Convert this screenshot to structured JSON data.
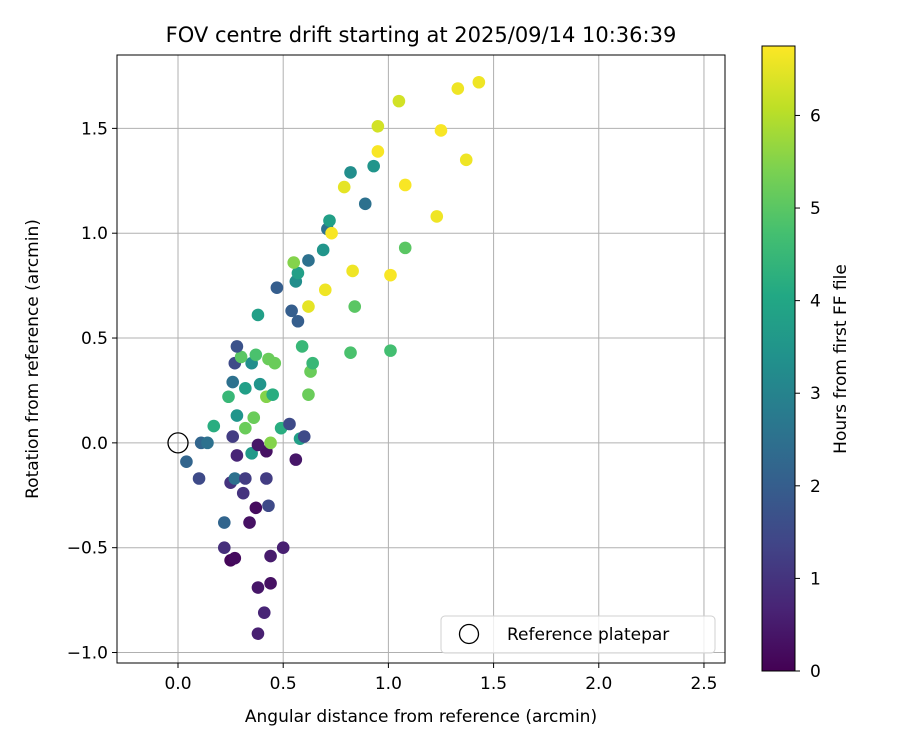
{
  "chart_data": {
    "type": "scatter",
    "title": "FOV centre drift starting at 2025/09/14 10:36:39",
    "xlabel": "Angular distance from reference (arcmin)",
    "ylabel": "Rotation from reference (arcmin)",
    "xlim": [
      -0.29,
      2.6
    ],
    "ylim": [
      -1.05,
      1.85
    ],
    "xticks": [
      0.0,
      0.5,
      1.0,
      1.5,
      2.0,
      2.5
    ],
    "xtick_labels": [
      "0.0",
      "0.5",
      "1.0",
      "1.5",
      "2.0",
      "2.5"
    ],
    "yticks": [
      -1.0,
      -0.5,
      0.0,
      0.5,
      1.0,
      1.5
    ],
    "ytick_labels": [
      "−1.0",
      "−0.5",
      "0.0",
      "0.5",
      "1.0",
      "1.5"
    ],
    "grid": true,
    "legend": {
      "location": "lower-right",
      "entries": [
        {
          "label": "Reference platepar",
          "marker": "open-circle"
        }
      ]
    },
    "colorbar": {
      "label": "Hours from first FF file",
      "colormap": "viridis",
      "range": [
        0,
        6.75
      ],
      "ticks": [
        0,
        1,
        2,
        3,
        4,
        5,
        6
      ],
      "tick_labels": [
        "0",
        "1",
        "2",
        "3",
        "4",
        "5",
        "6"
      ]
    },
    "reference_point": {
      "x": 0.0,
      "y": 0.0
    },
    "points": [
      {
        "x": 0.38,
        "y": -0.91,
        "h": 0.6
      },
      {
        "x": 0.41,
        "y": -0.81,
        "h": 0.7
      },
      {
        "x": 0.38,
        "y": -0.69,
        "h": 0.4
      },
      {
        "x": 0.44,
        "y": -0.67,
        "h": 0.3
      },
      {
        "x": 0.25,
        "y": -0.56,
        "h": 0.1
      },
      {
        "x": 0.27,
        "y": -0.55,
        "h": 0.2
      },
      {
        "x": 0.44,
        "y": -0.54,
        "h": 0.5
      },
      {
        "x": 0.22,
        "y": -0.5,
        "h": 0.9
      },
      {
        "x": 0.5,
        "y": -0.5,
        "h": 0.6
      },
      {
        "x": 0.34,
        "y": -0.38,
        "h": 0.3
      },
      {
        "x": 0.22,
        "y": -0.38,
        "h": 2.2
      },
      {
        "x": 0.37,
        "y": -0.31,
        "h": 0.2
      },
      {
        "x": 0.43,
        "y": -0.3,
        "h": 1.5
      },
      {
        "x": 0.31,
        "y": -0.24,
        "h": 1.0
      },
      {
        "x": 0.25,
        "y": -0.19,
        "h": 1.0
      },
      {
        "x": 0.1,
        "y": -0.17,
        "h": 1.5
      },
      {
        "x": 0.27,
        "y": -0.17,
        "h": 2.5
      },
      {
        "x": 0.32,
        "y": -0.17,
        "h": 1.2
      },
      {
        "x": 0.42,
        "y": -0.17,
        "h": 1.2
      },
      {
        "x": 0.04,
        "y": -0.09,
        "h": 2.2
      },
      {
        "x": 0.56,
        "y": -0.08,
        "h": 0.4
      },
      {
        "x": 0.28,
        "y": -0.06,
        "h": 0.7
      },
      {
        "x": 0.35,
        "y": -0.05,
        "h": 3.6
      },
      {
        "x": 0.42,
        "y": -0.04,
        "h": 0.3
      },
      {
        "x": 0.38,
        "y": -0.01,
        "h": 0.4
      },
      {
        "x": 0.11,
        "y": 0.0,
        "h": 2.2
      },
      {
        "x": 0.14,
        "y": 0.0,
        "h": 2.5
      },
      {
        "x": 0.44,
        "y": 0.0,
        "h": 5.5
      },
      {
        "x": 0.58,
        "y": 0.02,
        "h": 3.8
      },
      {
        "x": 0.26,
        "y": 0.03,
        "h": 1.2
      },
      {
        "x": 0.6,
        "y": 0.03,
        "h": 1.5
      },
      {
        "x": 0.32,
        "y": 0.07,
        "h": 5.2
      },
      {
        "x": 0.49,
        "y": 0.07,
        "h": 4.2
      },
      {
        "x": 0.17,
        "y": 0.08,
        "h": 4.2
      },
      {
        "x": 0.53,
        "y": 0.09,
        "h": 1.5
      },
      {
        "x": 0.36,
        "y": 0.12,
        "h": 5.2
      },
      {
        "x": 0.28,
        "y": 0.13,
        "h": 3.5
      },
      {
        "x": 0.42,
        "y": 0.22,
        "h": 5.5
      },
      {
        "x": 0.62,
        "y": 0.23,
        "h": 5.2
      },
      {
        "x": 0.45,
        "y": 0.23,
        "h": 4.2
      },
      {
        "x": 0.24,
        "y": 0.22,
        "h": 4.5
      },
      {
        "x": 0.32,
        "y": 0.26,
        "h": 3.8
      },
      {
        "x": 0.39,
        "y": 0.28,
        "h": 3.5
      },
      {
        "x": 0.26,
        "y": 0.29,
        "h": 2.5
      },
      {
        "x": 0.63,
        "y": 0.34,
        "h": 5.2
      },
      {
        "x": 0.27,
        "y": 0.38,
        "h": 1.5
      },
      {
        "x": 0.35,
        "y": 0.38,
        "h": 3.3
      },
      {
        "x": 0.64,
        "y": 0.38,
        "h": 4.5
      },
      {
        "x": 0.46,
        "y": 0.38,
        "h": 5.2
      },
      {
        "x": 0.3,
        "y": 0.41,
        "h": 5.0
      },
      {
        "x": 0.37,
        "y": 0.42,
        "h": 4.8
      },
      {
        "x": 0.43,
        "y": 0.4,
        "h": 5.2
      },
      {
        "x": 0.82,
        "y": 0.43,
        "h": 4.8
      },
      {
        "x": 1.01,
        "y": 0.44,
        "h": 4.7
      },
      {
        "x": 0.59,
        "y": 0.46,
        "h": 4.5
      },
      {
        "x": 0.28,
        "y": 0.46,
        "h": 1.7
      },
      {
        "x": 0.57,
        "y": 0.58,
        "h": 2.0
      },
      {
        "x": 0.38,
        "y": 0.61,
        "h": 3.8
      },
      {
        "x": 0.54,
        "y": 0.63,
        "h": 2.0
      },
      {
        "x": 0.84,
        "y": 0.65,
        "h": 5.0
      },
      {
        "x": 0.62,
        "y": 0.65,
        "h": 6.5
      },
      {
        "x": 0.7,
        "y": 0.73,
        "h": 6.6
      },
      {
        "x": 0.47,
        "y": 0.74,
        "h": 2.0
      },
      {
        "x": 0.56,
        "y": 0.77,
        "h": 3.3
      },
      {
        "x": 1.01,
        "y": 0.8,
        "h": 6.7
      },
      {
        "x": 0.57,
        "y": 0.81,
        "h": 3.8
      },
      {
        "x": 0.83,
        "y": 0.82,
        "h": 6.6
      },
      {
        "x": 0.55,
        "y": 0.86,
        "h": 5.5
      },
      {
        "x": 0.62,
        "y": 0.87,
        "h": 2.5
      },
      {
        "x": 0.69,
        "y": 0.92,
        "h": 3.5
      },
      {
        "x": 1.08,
        "y": 0.93,
        "h": 5.0
      },
      {
        "x": 0.71,
        "y": 1.02,
        "h": 2.5
      },
      {
        "x": 0.73,
        "y": 1.0,
        "h": 6.7
      },
      {
        "x": 0.72,
        "y": 1.06,
        "h": 3.8
      },
      {
        "x": 1.23,
        "y": 1.08,
        "h": 6.6
      },
      {
        "x": 0.89,
        "y": 1.14,
        "h": 2.5
      },
      {
        "x": 0.79,
        "y": 1.22,
        "h": 6.5
      },
      {
        "x": 1.08,
        "y": 1.23,
        "h": 6.7
      },
      {
        "x": 0.82,
        "y": 1.29,
        "h": 3.3
      },
      {
        "x": 0.93,
        "y": 1.32,
        "h": 3.5
      },
      {
        "x": 1.37,
        "y": 1.35,
        "h": 6.6
      },
      {
        "x": 0.95,
        "y": 1.39,
        "h": 6.7
      },
      {
        "x": 1.25,
        "y": 1.49,
        "h": 6.7
      },
      {
        "x": 0.95,
        "y": 1.51,
        "h": 6.3
      },
      {
        "x": 1.05,
        "y": 1.63,
        "h": 6.3
      },
      {
        "x": 1.33,
        "y": 1.69,
        "h": 6.6
      },
      {
        "x": 1.43,
        "y": 1.72,
        "h": 6.6
      }
    ]
  }
}
